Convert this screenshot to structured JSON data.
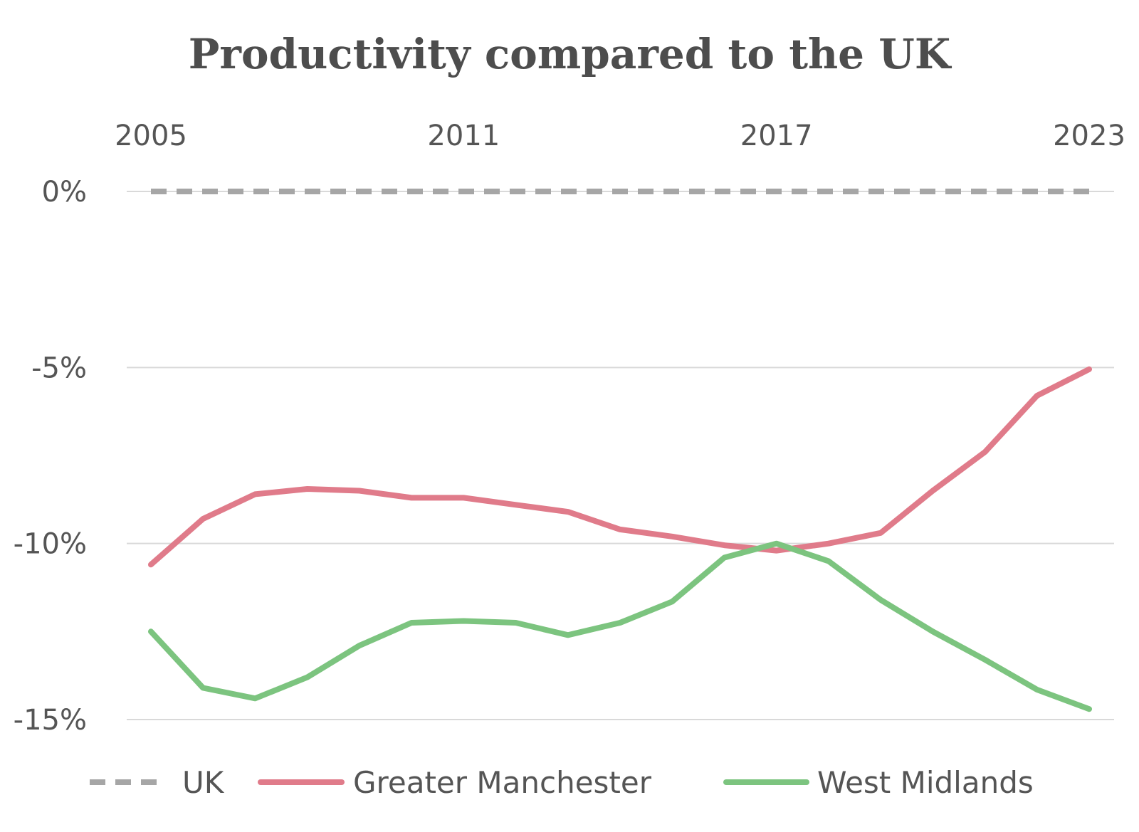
{
  "chart_data": {
    "type": "line",
    "title": "Productivity compared to the UK",
    "xlabel": "",
    "ylabel": "",
    "x": [
      2005,
      2006,
      2007,
      2008,
      2009,
      2010,
      2011,
      2012,
      2013,
      2014,
      2015,
      2016,
      2017,
      2018,
      2019,
      2020,
      2021,
      2022,
      2023
    ],
    "x_ticks": [
      "2005",
      "2011",
      "2017",
      "2023"
    ],
    "x_tick_values": [
      2005,
      2011,
      2017,
      2023
    ],
    "x_axis_position": "top",
    "xlim": [
      2005,
      2023
    ],
    "y_ticks": [
      "0%",
      "-5%",
      "-10%",
      "-15%"
    ],
    "y_tick_values": [
      0,
      -5,
      -10,
      -15
    ],
    "ylim": [
      -15,
      0
    ],
    "grid": true,
    "legend_position": "bottom",
    "series": [
      {
        "name": "UK",
        "color": "#a6a6a6",
        "dash": true,
        "values": [
          0,
          0,
          0,
          0,
          0,
          0,
          0,
          0,
          0,
          0,
          0,
          0,
          0,
          0,
          0,
          0,
          0,
          0,
          0
        ]
      },
      {
        "name": "Greater Manchester",
        "color": "#e07b8a",
        "dash": false,
        "values": [
          -10.6,
          -9.3,
          -8.6,
          -8.45,
          -8.5,
          -8.7,
          -8.7,
          -8.9,
          -9.1,
          -9.6,
          -9.8,
          -10.05,
          -10.2,
          -10.0,
          -9.7,
          -8.5,
          -7.4,
          -5.8,
          -5.05
        ]
      },
      {
        "name": "West Midlands",
        "color": "#7cc47f",
        "dash": false,
        "values": [
          -12.5,
          -14.1,
          -14.4,
          -13.8,
          -12.9,
          -12.25,
          -12.2,
          -12.25,
          -12.6,
          -12.25,
          -11.65,
          -10.4,
          -10.0,
          -10.5,
          -11.6,
          -12.5,
          -13.3,
          -14.15,
          -14.7
        ]
      }
    ]
  }
}
